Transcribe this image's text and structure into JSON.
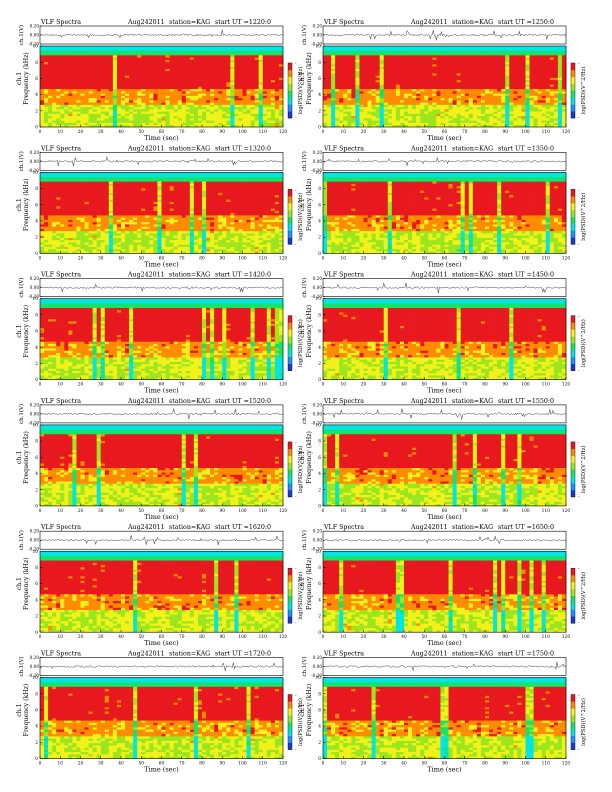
{
  "colors": {
    "scale": [
      "#1a3cc8",
      "#1e90ff",
      "#00e5e5",
      "#17e36b",
      "#9be61e",
      "#f2f21a",
      "#ff8c00",
      "#e8191e"
    ],
    "band_top": "#14e8d6",
    "background": "#ffffff"
  },
  "chart_data": [
    {
      "type": "heatmap",
      "header": {
        "left": "VLF Spectra",
        "date": "Aug242011",
        "station": "station=KAG",
        "start": "start UT =1220:0"
      },
      "top": {
        "ylabel": "ch.1(V)",
        "ticks": [
          "0.20",
          "0.00",
          "-0.20"
        ],
        "ylim": [
          -0.2,
          0.2
        ]
      },
      "main": {
        "ylabel": "ch.1",
        "ylabel2": "Frequency (kHz)",
        "yticks": [
          "0",
          "2",
          "4",
          "6",
          "8",
          "10"
        ],
        "ylim": [
          0,
          10
        ],
        "xlabel": "Time (sec)",
        "xticks": [
          "0",
          "10",
          "20",
          "30",
          "40",
          "50",
          "60",
          "70",
          "80",
          "90",
          "100",
          "110",
          "120"
        ],
        "xlim": [
          0,
          120
        ]
      },
      "colorbar": {
        "label": "log(PSD)(V^2/Hz)",
        "ticks": [
          "-",
          "-"
        ]
      }
    },
    {
      "type": "heatmap",
      "header": {
        "left": "VLF Spectra",
        "date": "Aug242011",
        "station": "station=KAG",
        "start": "start UT =1250:0"
      },
      "top": {
        "ylabel": "ch.1(V)",
        "ticks": [
          "0.20",
          "0.00",
          "-0.20"
        ],
        "ylim": [
          -0.2,
          0.2
        ]
      },
      "main": {
        "ylabel": "ch.1",
        "ylabel2": "Frequency (kHz)",
        "yticks": [
          "0",
          "2",
          "4",
          "6",
          "8",
          "10"
        ],
        "ylim": [
          0,
          10
        ],
        "xlabel": "Time (sec)",
        "xticks": [
          "0",
          "10",
          "20",
          "30",
          "40",
          "50",
          "60",
          "70",
          "80",
          "90",
          "100",
          "110",
          "120"
        ],
        "xlim": [
          0,
          120
        ]
      },
      "colorbar": {
        "label": "log(PSD)(V^2/Hz)",
        "ticks": [
          "-",
          "-"
        ]
      }
    },
    {
      "type": "heatmap",
      "header": {
        "left": "VLF Spectra",
        "date": "Aug242011",
        "station": "station=KAG",
        "start": "start UT =1320:0"
      },
      "top": {
        "ylabel": "ch.1(V)",
        "ticks": [
          "0.20",
          "0.00",
          "-0.20"
        ],
        "ylim": [
          -0.2,
          0.2
        ]
      },
      "main": {
        "ylabel": "ch.1",
        "ylabel2": "Frequency (kHz)",
        "yticks": [
          "0",
          "2",
          "4",
          "6",
          "8",
          "10"
        ],
        "ylim": [
          0,
          10
        ],
        "xlabel": "Time (sec)",
        "xticks": [
          "0",
          "10",
          "20",
          "30",
          "40",
          "50",
          "60",
          "70",
          "80",
          "90",
          "100",
          "110",
          "120"
        ],
        "xlim": [
          0,
          120
        ]
      },
      "colorbar": {
        "label": "log(PSD)(V^2/Hz)",
        "ticks": [
          "-",
          "-"
        ]
      }
    },
    {
      "type": "heatmap",
      "header": {
        "left": "VLF Spectra",
        "date": "Aug242011",
        "station": "station=KAG",
        "start": "start UT =1350:0"
      },
      "top": {
        "ylabel": "ch.1(V)",
        "ticks": [
          "0.20",
          "0.00",
          "-0.20"
        ],
        "ylim": [
          -0.2,
          0.2
        ]
      },
      "main": {
        "ylabel": "ch.1",
        "ylabel2": "Frequency (kHz)",
        "yticks": [
          "0",
          "2",
          "4",
          "6",
          "8",
          "10"
        ],
        "ylim": [
          0,
          10
        ],
        "xlabel": "Time (sec)",
        "xticks": [
          "0",
          "10",
          "20",
          "30",
          "40",
          "50",
          "60",
          "70",
          "80",
          "90",
          "100",
          "110",
          "120"
        ],
        "xlim": [
          0,
          120
        ]
      },
      "colorbar": {
        "label": "log(PSD)(V^2/Hz)",
        "ticks": [
          "-",
          "-"
        ]
      }
    },
    {
      "type": "heatmap",
      "header": {
        "left": "VLF Spectra",
        "date": "Aug242011",
        "station": "station=KAG",
        "start": "start UT =1420:0"
      },
      "top": {
        "ylabel": "ch.1(V)",
        "ticks": [
          "0.20",
          "0.00",
          "-0.20"
        ],
        "ylim": [
          -0.2,
          0.2
        ]
      },
      "main": {
        "ylabel": "ch.1",
        "ylabel2": "Frequency (kHz)",
        "yticks": [
          "0",
          "2",
          "4",
          "6",
          "8",
          "10"
        ],
        "ylim": [
          0,
          10
        ],
        "xlabel": "Time (sec)",
        "xticks": [
          "0",
          "10",
          "20",
          "30",
          "40",
          "50",
          "60",
          "70",
          "80",
          "90",
          "100",
          "110",
          "120"
        ],
        "xlim": [
          0,
          120
        ]
      },
      "colorbar": {
        "label": "log(PSD)(V^2/Hz)",
        "ticks": [
          "-",
          "-"
        ]
      }
    },
    {
      "type": "heatmap",
      "header": {
        "left": "VLF Spectra",
        "date": "Aug242011",
        "station": "station=KAG",
        "start": "start UT =1450:0"
      },
      "top": {
        "ylabel": "ch.1(V)",
        "ticks": [
          "0.20",
          "0.00",
          "-0.20"
        ],
        "ylim": [
          -0.2,
          0.2
        ]
      },
      "main": {
        "ylabel": "ch.1",
        "ylabel2": "Frequency (kHz)",
        "yticks": [
          "0",
          "2",
          "4",
          "6",
          "8",
          "10"
        ],
        "ylim": [
          0,
          10
        ],
        "xlabel": "Time (sec)",
        "xticks": [
          "0",
          "10",
          "20",
          "30",
          "40",
          "50",
          "60",
          "70",
          "80",
          "90",
          "100",
          "110",
          "120"
        ],
        "xlim": [
          0,
          120
        ]
      },
      "colorbar": {
        "label": "log(PSD)(V^2/Hz)",
        "ticks": [
          "-",
          "-"
        ]
      }
    },
    {
      "type": "heatmap",
      "header": {
        "left": "VLF Spectra",
        "date": "Aug242011",
        "station": "station=KAG",
        "start": "start UT =1520:0"
      },
      "top": {
        "ylabel": "ch.1(V)",
        "ticks": [
          "0.20",
          "0.00",
          "-0.20"
        ],
        "ylim": [
          -0.2,
          0.2
        ]
      },
      "main": {
        "ylabel": "ch.1",
        "ylabel2": "Frequency (kHz)",
        "yticks": [
          "0",
          "2",
          "4",
          "6",
          "8",
          "10"
        ],
        "ylim": [
          0,
          10
        ],
        "xlabel": "Time (sec)",
        "xticks": [
          "0",
          "10",
          "20",
          "30",
          "40",
          "50",
          "60",
          "70",
          "80",
          "90",
          "100",
          "110",
          "120"
        ],
        "xlim": [
          0,
          120
        ]
      },
      "colorbar": {
        "label": "log(PSD)(V^2/Hz)",
        "ticks": [
          "-",
          "-"
        ]
      }
    },
    {
      "type": "heatmap",
      "header": {
        "left": "VLF Spectra",
        "date": "Aug242011",
        "station": "station=KAG",
        "start": "start UT =1550:0"
      },
      "top": {
        "ylabel": "ch.1(V)",
        "ticks": [
          "0.20",
          "0.00",
          "-0.20"
        ],
        "ylim": [
          -0.2,
          0.2
        ]
      },
      "main": {
        "ylabel": "ch.1",
        "ylabel2": "Frequency (kHz)",
        "yticks": [
          "0",
          "2",
          "4",
          "6",
          "8",
          "10"
        ],
        "ylim": [
          0,
          10
        ],
        "xlabel": "Time (sec)",
        "xticks": [
          "0",
          "10",
          "20",
          "30",
          "40",
          "50",
          "60",
          "70",
          "80",
          "90",
          "100",
          "110",
          "120"
        ],
        "xlim": [
          0,
          120
        ]
      },
      "colorbar": {
        "label": "log(PSD)(V^2/Hz)",
        "ticks": [
          "-",
          "-"
        ]
      }
    },
    {
      "type": "heatmap",
      "header": {
        "left": "VLF Spectra",
        "date": "Aug242011",
        "station": "station=KAG",
        "start": "start UT =1620:0"
      },
      "top": {
        "ylabel": "ch.1(V)",
        "ticks": [
          "0.20",
          "0.00",
          "-0.20"
        ],
        "ylim": [
          -0.2,
          0.2
        ]
      },
      "main": {
        "ylabel": "ch.1",
        "ylabel2": "Frequency (kHz)",
        "yticks": [
          "0",
          "2",
          "4",
          "6",
          "8",
          "10"
        ],
        "ylim": [
          0,
          10
        ],
        "xlabel": "Time (sec)",
        "xticks": [
          "0",
          "10",
          "20",
          "30",
          "40",
          "50",
          "60",
          "70",
          "80",
          "90",
          "100",
          "110",
          "120"
        ],
        "xlim": [
          0,
          120
        ]
      },
      "colorbar": {
        "label": "log(PSD)(V^2/Hz)",
        "ticks": [
          "-",
          "-"
        ]
      }
    },
    {
      "type": "heatmap",
      "header": {
        "left": "VLF Spectra",
        "date": "Aug242011",
        "station": "station=KAG",
        "start": "start UT =1650:0"
      },
      "top": {
        "ylabel": "ch.1(V)",
        "ticks": [
          "0.20",
          "0.00",
          "-0.20"
        ],
        "ylim": [
          -0.2,
          0.2
        ]
      },
      "main": {
        "ylabel": "ch.1",
        "ylabel2": "Frequency (kHz)",
        "yticks": [
          "0",
          "2",
          "4",
          "6",
          "8",
          "10"
        ],
        "ylim": [
          0,
          10
        ],
        "xlabel": "Time (sec)",
        "xticks": [
          "0",
          "10",
          "20",
          "30",
          "40",
          "50",
          "60",
          "70",
          "80",
          "90",
          "100",
          "110",
          "120"
        ],
        "xlim": [
          0,
          120
        ]
      },
      "colorbar": {
        "label": "log(PSD)(V^2/Hz)",
        "ticks": [
          "-",
          "-"
        ]
      }
    },
    {
      "type": "heatmap",
      "header": {
        "left": "VLF Spectra",
        "date": "Aug242011",
        "station": "station=KAG",
        "start": "start UT =1720:0"
      },
      "top": {
        "ylabel": "ch.1(V)",
        "ticks": [
          "0.20",
          "0.00",
          "-0.20"
        ],
        "ylim": [
          -0.2,
          0.2
        ]
      },
      "main": {
        "ylabel": "ch.1",
        "ylabel2": "Frequency (kHz)",
        "yticks": [
          "0",
          "2",
          "4",
          "6",
          "8",
          "10"
        ],
        "ylim": [
          0,
          10
        ],
        "xlabel": "Time (sec)",
        "xticks": [
          "0",
          "10",
          "20",
          "30",
          "40",
          "50",
          "60",
          "70",
          "80",
          "90",
          "100",
          "110",
          "120"
        ],
        "xlim": [
          0,
          120
        ]
      },
      "colorbar": {
        "label": "log(PSD)(V^2/Hz)",
        "ticks": [
          "-",
          "-"
        ]
      }
    },
    {
      "type": "heatmap",
      "header": {
        "left": "VLF Spectra",
        "date": "Aug242011",
        "station": "station=KAG",
        "start": "start UT =1750:0"
      },
      "top": {
        "ylabel": "ch.1(V)",
        "ticks": [
          "0.20",
          "0.00",
          "-0.20"
        ],
        "ylim": [
          -0.2,
          0.2
        ]
      },
      "main": {
        "ylabel": "ch.1",
        "ylabel2": "Frequency (kHz)",
        "yticks": [
          "0",
          "2",
          "4",
          "6",
          "8",
          "10"
        ],
        "ylim": [
          0,
          10
        ],
        "xlabel": "Time (sec)",
        "xticks": [
          "0",
          "10",
          "20",
          "30",
          "40",
          "50",
          "60",
          "70",
          "80",
          "90",
          "100",
          "110",
          "120"
        ],
        "xlim": [
          0,
          120
        ]
      },
      "colorbar": {
        "label": "log(PSD)(V^2/Hz)",
        "ticks": [
          "-",
          "-"
        ]
      }
    }
  ]
}
